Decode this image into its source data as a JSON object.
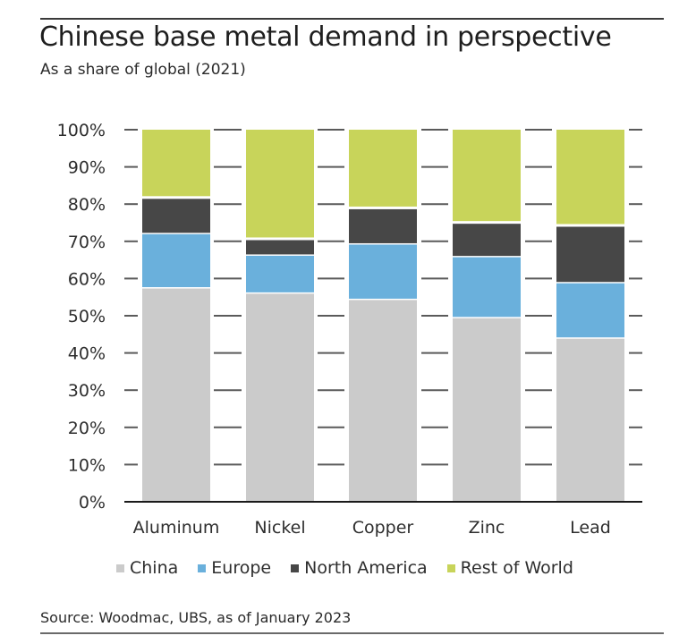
{
  "chart_data": {
    "type": "bar",
    "stacked": true,
    "title": "Chinese base metal demand in perspective",
    "subtitle": "As a share of global (2021)",
    "xlabel": "",
    "ylabel": "",
    "ylim": [
      0,
      100
    ],
    "yticks": [
      0,
      10,
      20,
      30,
      40,
      50,
      60,
      70,
      80,
      90,
      100
    ],
    "ytick_labels": [
      "0%",
      "10%",
      "20%",
      "30%",
      "40%",
      "50%",
      "60%",
      "70%",
      "80%",
      "90%",
      "100%"
    ],
    "categories": [
      "Aluminum",
      "Nickel",
      "Copper",
      "Zinc",
      "Lead"
    ],
    "series": [
      {
        "name": "China",
        "color": "#cbcbcb",
        "values": [
          57.5,
          56.1,
          54.4,
          49.5,
          44.0
        ]
      },
      {
        "name": "Europe",
        "color": "#6ab0dc",
        "values": [
          14.6,
          10.2,
          14.9,
          16.4,
          14.9
        ]
      },
      {
        "name": "North America",
        "color": "#474747",
        "values": [
          9.5,
          4.2,
          9.5,
          9.0,
          15.2
        ]
      },
      {
        "name": "Rest of World",
        "color": "#c8d45a",
        "values": [
          18.4,
          29.5,
          21.2,
          25.1,
          25.9
        ]
      }
    ],
    "legend_position": "bottom",
    "grid": false,
    "source": "Source: Woodmac, UBS, as of January 2023"
  }
}
